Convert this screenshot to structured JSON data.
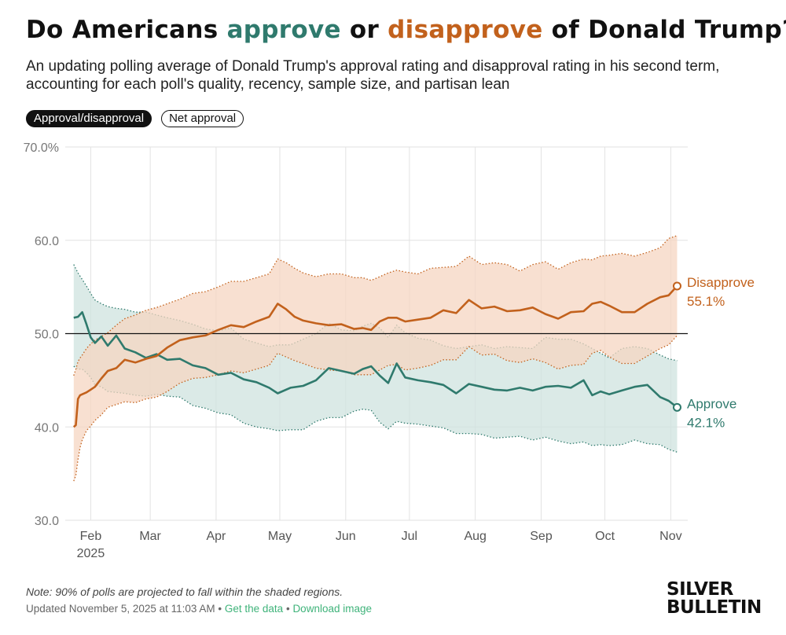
{
  "header": {
    "title_part1": "Do Americans ",
    "title_approve": "approve",
    "title_or": " or ",
    "title_disapprove": "disapprove",
    "title_part2": " of Donald Trump?",
    "subtitle": "An updating polling average of Donald Trump's approval rating and disapproval rating in his second term, accounting for each poll's quality, recency, sample size, and partisan lean"
  },
  "toggles": {
    "active": "Approval/disapproval",
    "inactive": "Net approval"
  },
  "colors": {
    "approve": "#2f7a6d",
    "disapprove": "#c2611c",
    "approve_band": "#cfe3df",
    "disapprove_band": "#f5d5c2",
    "grid": "#e2e2e2",
    "axis_text": "#777777"
  },
  "chart_data": {
    "type": "line",
    "y_ticks": [
      "70.0%",
      "60.0",
      "50.0",
      "40.0",
      "30.0"
    ],
    "y_tick_values": [
      70,
      60,
      50,
      40,
      30
    ],
    "ylim": [
      30,
      70
    ],
    "x_range_days": [
      0,
      293
    ],
    "x_ticks": [
      {
        "label": "Feb",
        "sublabel": "2025",
        "day": 12
      },
      {
        "label": "Mar",
        "sublabel": "",
        "day": 40
      },
      {
        "label": "Apr",
        "sublabel": "",
        "day": 71
      },
      {
        "label": "May",
        "sublabel": "",
        "day": 101
      },
      {
        "label": "Jun",
        "sublabel": "",
        "day": 132
      },
      {
        "label": "Jul",
        "sublabel": "",
        "day": 162
      },
      {
        "label": "Aug",
        "sublabel": "",
        "day": 193
      },
      {
        "label": "Sep",
        "sublabel": "",
        "day": 224
      },
      {
        "label": "Oct",
        "sublabel": "",
        "day": 254
      },
      {
        "label": "Nov",
        "sublabel": "",
        "day": 285
      }
    ],
    "reference_line": 50,
    "series": [
      {
        "name": "Approve",
        "label": "Approve",
        "value_label": "42.1%",
        "days": [
          4,
          6,
          8,
          10,
          12,
          14,
          17,
          20,
          24,
          28,
          33,
          38,
          43,
          48,
          54,
          60,
          66,
          72,
          78,
          84,
          90,
          96,
          100,
          106,
          112,
          118,
          124,
          130,
          136,
          140,
          144,
          148,
          152,
          156,
          160,
          166,
          172,
          178,
          184,
          190,
          196,
          202,
          208,
          214,
          220,
          226,
          232,
          238,
          244,
          248,
          252,
          256,
          262,
          268,
          274,
          280,
          284,
          288
        ],
        "values": [
          51.7,
          51.8,
          52.3,
          51.0,
          49.6,
          49.0,
          49.7,
          48.7,
          49.8,
          48.4,
          48.0,
          47.4,
          47.8,
          47.2,
          47.3,
          46.6,
          46.3,
          45.6,
          45.8,
          45.1,
          44.8,
          44.2,
          43.6,
          44.2,
          44.4,
          45.0,
          46.3,
          46.0,
          45.7,
          46.2,
          46.5,
          45.5,
          44.7,
          46.8,
          45.3,
          45.0,
          44.8,
          44.5,
          43.6,
          44.6,
          44.3,
          44.0,
          43.9,
          44.2,
          43.9,
          44.3,
          44.4,
          44.2,
          45.0,
          43.4,
          43.8,
          43.5,
          43.9,
          44.3,
          44.5,
          43.2,
          42.8,
          42.1
        ],
        "upper": [
          57.4,
          56.5,
          55.8,
          55.1,
          54.3,
          53.6,
          53.2,
          52.9,
          52.7,
          52.6,
          52.3,
          52.3,
          52.0,
          51.7,
          51.4,
          51.0,
          50.5,
          50.3,
          50.6,
          49.4,
          49.0,
          48.6,
          48.8,
          48.8,
          49.4,
          50.0,
          51.1,
          50.4,
          50.3,
          50.8,
          51.1,
          50.6,
          49.6,
          50.9,
          50.1,
          49.5,
          49.3,
          48.7,
          48.4,
          48.6,
          48.8,
          48.4,
          48.6,
          48.5,
          48.4,
          49.6,
          49.4,
          49.4,
          48.9,
          48.4,
          47.9,
          47.4,
          48.4,
          48.6,
          48.4,
          47.7,
          47.3,
          47.1
        ],
        "lower": [
          46.5,
          46.2,
          46.2,
          45.8,
          45.3,
          44.5,
          44.3,
          43.8,
          43.7,
          43.6,
          43.4,
          43.3,
          43.5,
          43.3,
          43.2,
          42.3,
          42.0,
          41.5,
          41.3,
          40.4,
          40.0,
          39.8,
          39.6,
          39.7,
          39.7,
          40.6,
          41.0,
          41.0,
          41.7,
          41.9,
          41.8,
          40.5,
          39.8,
          40.6,
          40.4,
          40.3,
          40.1,
          39.9,
          39.3,
          39.3,
          39.2,
          38.8,
          38.9,
          39.0,
          38.6,
          38.9,
          38.5,
          38.2,
          38.4,
          38.0,
          38.1,
          38.0,
          38.1,
          38.6,
          38.2,
          38.1,
          37.6,
          37.3
        ]
      },
      {
        "name": "Disapprove",
        "label": "Disapprove",
        "value_label": "55.1%",
        "days": [
          4,
          5,
          6,
          7,
          8,
          10,
          12,
          14,
          17,
          20,
          24,
          28,
          33,
          38,
          43,
          48,
          54,
          60,
          66,
          72,
          78,
          84,
          90,
          96,
          100,
          104,
          108,
          112,
          118,
          124,
          130,
          136,
          140,
          144,
          148,
          152,
          156,
          160,
          166,
          172,
          178,
          184,
          190,
          196,
          202,
          208,
          214,
          220,
          226,
          232,
          238,
          244,
          248,
          252,
          256,
          262,
          268,
          274,
          280,
          284,
          288
        ],
        "values": [
          40.0,
          40.2,
          43.0,
          43.4,
          43.5,
          43.7,
          44.0,
          44.3,
          45.2,
          46.0,
          46.3,
          47.2,
          46.9,
          47.3,
          47.6,
          48.5,
          49.3,
          49.6,
          49.8,
          50.4,
          50.9,
          50.7,
          51.3,
          51.8,
          53.2,
          52.6,
          51.8,
          51.4,
          51.1,
          50.9,
          51.0,
          50.5,
          50.6,
          50.4,
          51.3,
          51.7,
          51.7,
          51.3,
          51.5,
          51.7,
          52.5,
          52.2,
          53.6,
          52.7,
          52.9,
          52.4,
          52.5,
          52.8,
          52.1,
          51.6,
          52.3,
          52.4,
          53.2,
          53.4,
          53.0,
          52.3,
          52.3,
          53.2,
          53.9,
          54.1,
          55.1
        ],
        "upper": [
          45.5,
          46.2,
          47.0,
          47.4,
          47.7,
          48.4,
          48.9,
          49.3,
          49.7,
          50.1,
          50.9,
          51.6,
          52.0,
          52.5,
          52.8,
          53.2,
          53.7,
          54.3,
          54.5,
          55.0,
          55.6,
          55.6,
          56.0,
          56.4,
          58.0,
          57.6,
          57.0,
          56.5,
          56.1,
          56.4,
          56.4,
          56.0,
          56.0,
          55.7,
          56.1,
          56.5,
          56.8,
          56.6,
          56.4,
          57.0,
          57.1,
          57.2,
          58.3,
          57.4,
          57.6,
          57.4,
          56.7,
          57.4,
          57.7,
          56.9,
          57.6,
          58.0,
          57.9,
          58.3,
          58.4,
          58.6,
          58.3,
          58.7,
          59.2,
          60.2,
          60.5
        ],
        "lower": [
          34.2,
          34.8,
          36.5,
          37.8,
          38.6,
          39.6,
          40.1,
          40.7,
          41.3,
          42.1,
          42.4,
          42.7,
          42.6,
          43.0,
          43.2,
          43.8,
          44.7,
          45.2,
          45.3,
          45.6,
          46.0,
          45.8,
          46.2,
          46.6,
          47.9,
          47.5,
          47.1,
          46.8,
          46.3,
          46.1,
          46.0,
          45.6,
          45.6,
          45.6,
          46.1,
          46.6,
          46.7,
          46.1,
          46.3,
          46.6,
          47.2,
          47.2,
          48.6,
          47.7,
          47.8,
          47.1,
          46.9,
          47.3,
          46.9,
          46.2,
          46.6,
          46.7,
          47.9,
          48.2,
          47.5,
          46.8,
          46.8,
          47.6,
          48.4,
          48.8,
          49.8
        ]
      }
    ]
  },
  "footer": {
    "note": "Note: 90% of polls are projected to fall within the shaded regions.",
    "updated": "Updated November 5, 2025 at 11:03 AM",
    "sep1": " • ",
    "get_data": "Get the data",
    "sep2": " • ",
    "download": "Download image"
  },
  "logo": {
    "line1": "SILVER",
    "line2": "BULLETIN"
  }
}
